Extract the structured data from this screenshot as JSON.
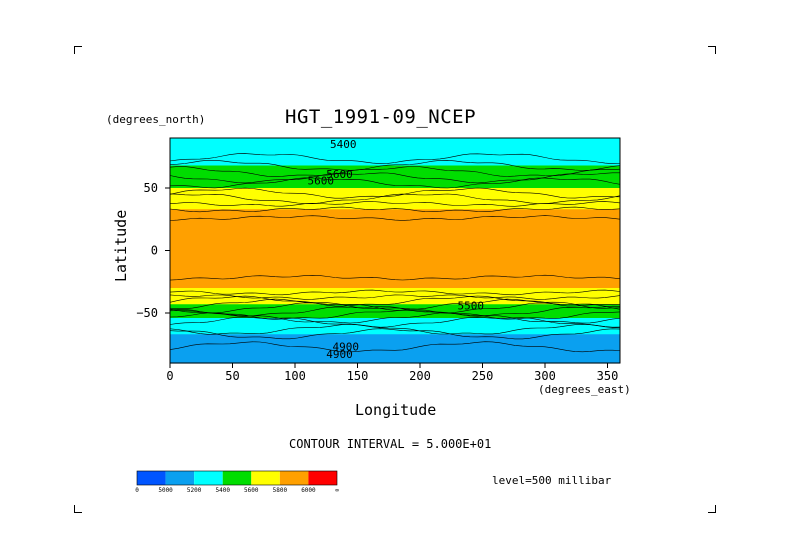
{
  "chart_data": {
    "type": "heatmap",
    "title": "HGT_1991-09_NCEP",
    "xlabel": "Longitude",
    "ylabel": "Latitude",
    "x_units": "(degrees_east)",
    "y_units": "(degrees_north)",
    "xlim": [
      0,
      360
    ],
    "ylim": [
      -90,
      90
    ],
    "x_ticks": [
      0,
      50,
      100,
      150,
      200,
      250,
      300,
      350
    ],
    "y_ticks": [
      -50,
      0,
      50
    ],
    "contour_interval_text": "CONTOUR INTERVAL = 5.000E+01",
    "level_text": "level=500 millibar",
    "contour_labels": [
      "5400",
      "5600",
      "5600",
      "5500",
      "4900",
      "4900"
    ],
    "legend": {
      "levels": [
        "0",
        "5000",
        "5200",
        "5400",
        "5600",
        "5800",
        "6000",
        "∞"
      ],
      "colors": [
        "#0055ff",
        "#0aa0f0",
        "#00ffff",
        "#00dd00",
        "#ffff00",
        "#ffa000",
        "#ff0000"
      ]
    },
    "zonal_profile": {
      "lat": [
        90,
        80,
        70,
        60,
        50,
        40,
        30,
        20,
        10,
        0,
        -10,
        -20,
        -30,
        -40,
        -50,
        -60,
        -70,
        -80,
        -90
      ],
      "value": [
        5250,
        5300,
        5380,
        5480,
        5600,
        5720,
        5830,
        5880,
        5880,
        5870,
        5880,
        5860,
        5800,
        5660,
        5470,
        5300,
        5150,
        5080,
        5080
      ]
    }
  }
}
